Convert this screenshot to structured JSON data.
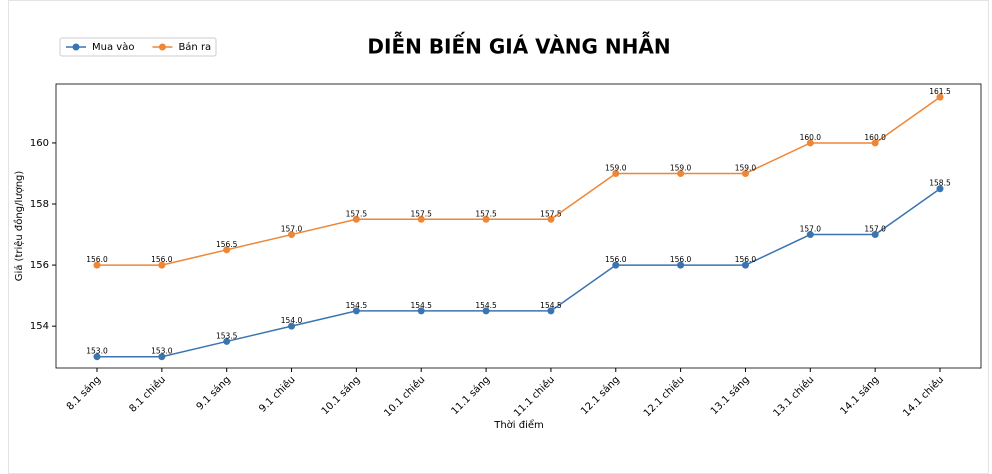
{
  "chart_data": {
    "type": "line",
    "title": "DIỄN BIẾN GIÁ VÀNG NHẪN",
    "xlabel": "Thời điểm",
    "ylabel": "Giá (triệu đồng/lượng)",
    "categories": [
      "8.1 sáng",
      "8.1 chiều",
      "9.1 sáng",
      "9.1 chiều",
      "10.1 sáng",
      "10.1 chiều",
      "11.1 sáng",
      "11.1 chiều",
      "12.1 sáng",
      "12.1 chiều",
      "13.1 sáng",
      "13.1 chiều",
      "14.1 sáng",
      "14.1 chiều"
    ],
    "series": [
      {
        "name": "Mua vào",
        "color": "#3a75b0",
        "values": [
          153,
          153,
          153.5,
          154,
          154.5,
          154.5,
          154.5,
          154.5,
          156,
          156,
          156,
          157,
          157,
          158.5
        ],
        "value_labels": [
          "153.0",
          "153.0",
          "153.5",
          "154.0",
          "154.5",
          "154.5",
          "154.5",
          "154.5",
          "156.0",
          "156.0",
          "156.0",
          "157.0",
          "157.0",
          "158.5"
        ]
      },
      {
        "name": "Bán ra",
        "color": "#ef8636",
        "values": [
          156,
          156,
          156.5,
          157,
          157.5,
          157.5,
          157.5,
          157.5,
          159,
          159,
          159,
          160,
          160,
          161.5
        ],
        "value_labels": [
          "156.0",
          "156.0",
          "156.5",
          "157.0",
          "157.5",
          "157.5",
          "157.5",
          "157.5",
          "159.0",
          "159.0",
          "159.0",
          "160.0",
          "160.0",
          "161.5"
        ]
      }
    ],
    "ylim": [
      152.63,
      161.93
    ],
    "yticks": [
      154,
      156,
      158,
      160
    ],
    "legend": "upper left"
  }
}
